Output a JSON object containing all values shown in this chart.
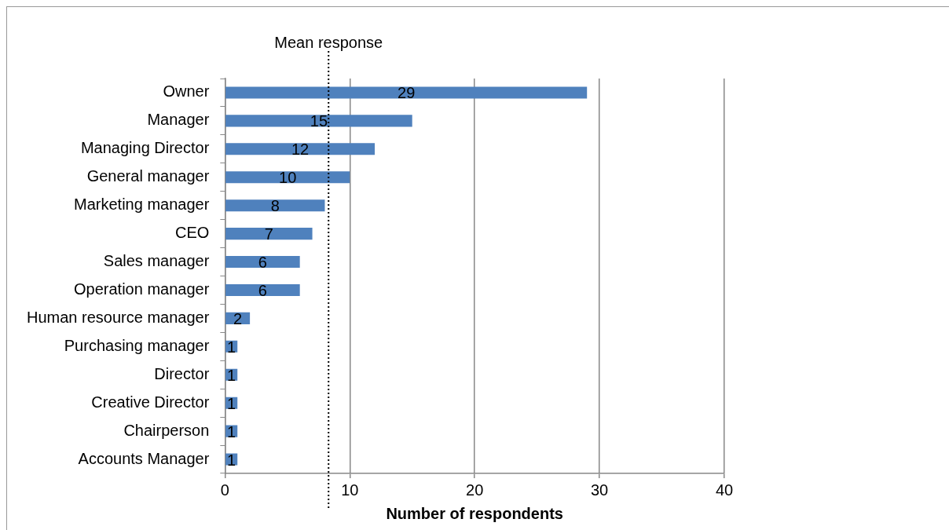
{
  "chart_data": {
    "type": "bar",
    "orientation": "horizontal",
    "xlabel": "Number of respondents",
    "categories": [
      "Owner",
      "Manager",
      "Managing Director",
      "General manager",
      "Marketing manager",
      "CEO",
      "Sales manager",
      "Operation manager",
      "Human resource manager",
      "Purchasing manager",
      "Director",
      "Creative Director",
      "Chairperson",
      "Accounts Manager"
    ],
    "values": [
      29,
      15,
      12,
      10,
      8,
      7,
      6,
      6,
      2,
      1,
      1,
      1,
      1,
      1
    ],
    "color": "#4f81bd",
    "xlim": [
      0,
      40
    ],
    "xticks": [
      0,
      10,
      20,
      30,
      40
    ],
    "grid": "x",
    "legend": false,
    "data_labels": true,
    "ref_lines": [
      {
        "axis": "x",
        "value": 8.3,
        "label": "Mean response",
        "line_style": "dotted",
        "color": "#000000"
      }
    ]
  }
}
